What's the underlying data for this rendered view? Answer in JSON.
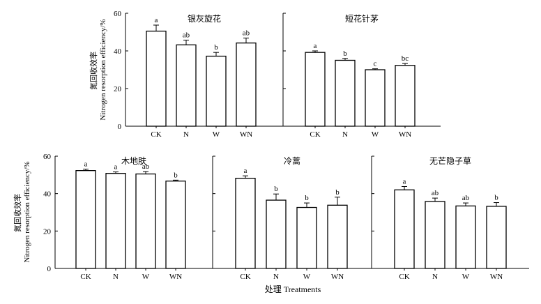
{
  "figure": {
    "xlabel": "处理 Treatments",
    "ylabel_cn": "氮回收效率",
    "ylabel_en": "Nitrogen resorption efficiency/%"
  },
  "chart_data": [
    {
      "type": "bar",
      "title": "银灰旋花",
      "categories": [
        "CK",
        "N",
        "W",
        "WN"
      ],
      "values": [
        50.5,
        43.2,
        37.2,
        44.2
      ],
      "errors": [
        3.2,
        2.5,
        2.0,
        2.6
      ],
      "labels": [
        "a",
        "ab",
        "b",
        "ab"
      ],
      "ylim": [
        0,
        60
      ],
      "yticks": [
        0,
        20,
        40,
        60
      ],
      "ylabel": "氮回收效率 Nitrogen resorption efficiency/%"
    },
    {
      "type": "bar",
      "title": "短花针茅",
      "categories": [
        "CK",
        "N",
        "W",
        "WN"
      ],
      "values": [
        39.2,
        35.0,
        30.0,
        32.3
      ],
      "errors": [
        0.8,
        1.0,
        0.5,
        1.0
      ],
      "labels": [
        "a",
        "b",
        "c",
        "bc"
      ],
      "ylim": [
        0,
        60
      ],
      "yticks": [
        0,
        20,
        40,
        60
      ]
    },
    {
      "type": "bar",
      "title": "木地肤",
      "categories": [
        "CK",
        "N",
        "W",
        "WN"
      ],
      "values": [
        52.3,
        50.8,
        50.5,
        46.7
      ],
      "errors": [
        0.8,
        0.8,
        1.3,
        0.5
      ],
      "labels": [
        "a",
        "a",
        "ab",
        "b"
      ],
      "ylim": [
        0,
        60
      ],
      "yticks": [
        0,
        20,
        40,
        60
      ],
      "ylabel": "氮回收效率 Nitrogen resorption efficiency/%"
    },
    {
      "type": "bar",
      "title": "冷蒿",
      "categories": [
        "CK",
        "N",
        "W",
        "WN"
      ],
      "values": [
        48.2,
        36.5,
        32.6,
        33.8
      ],
      "errors": [
        1.3,
        3.3,
        2.4,
        4.3
      ],
      "labels": [
        "a",
        "b",
        "b",
        "b"
      ],
      "ylim": [
        0,
        60
      ],
      "yticks": [
        0,
        20,
        40,
        60
      ]
    },
    {
      "type": "bar",
      "title": "无芒隐子草",
      "categories": [
        "CK",
        "N",
        "W",
        "WN"
      ],
      "values": [
        42.0,
        35.8,
        33.4,
        33.2
      ],
      "errors": [
        1.8,
        1.8,
        1.6,
        2.0
      ],
      "labels": [
        "a",
        "ab",
        "ab",
        "b"
      ],
      "ylim": [
        0,
        60
      ],
      "yticks": [
        0,
        20,
        40,
        60
      ]
    }
  ]
}
